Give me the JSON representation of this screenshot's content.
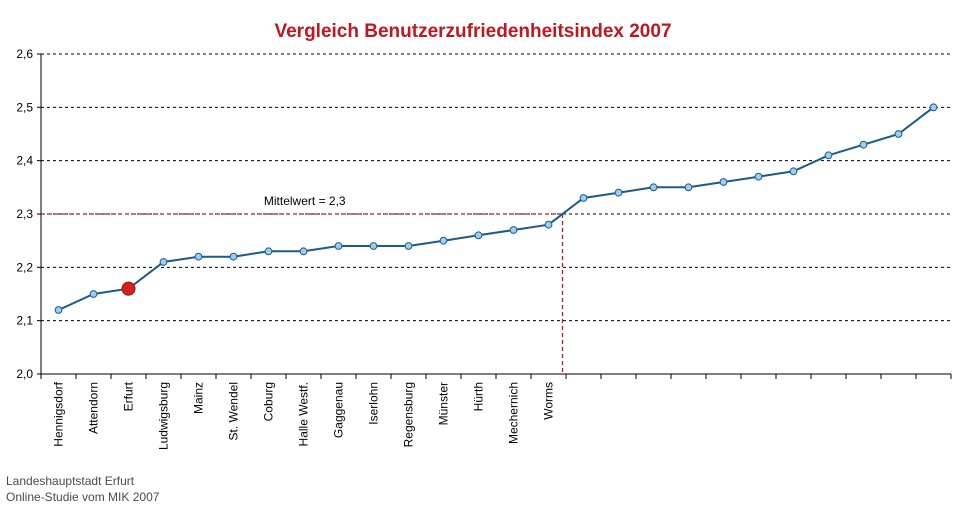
{
  "chart_data": {
    "type": "line",
    "title": "Vergleich Benutzerzufriedenheitsindex 2007",
    "title_color": "#c0171f",
    "line_color": "#1a5b8a",
    "marker_color": "#9dcdf0",
    "highlight_color": "#d32020",
    "reference_color": "#c0171f",
    "ylim": [
      2.0,
      2.6
    ],
    "y_ticks": [
      "2,0",
      "2,1",
      "2,2",
      "2,3",
      "2,4",
      "2,5",
      "2,6"
    ],
    "grid": true,
    "categories": [
      "Hennigsdorf",
      "Attendorn",
      "Erfurt",
      "Ludwigsburg",
      "Mainz",
      "St. Wendel",
      "Coburg",
      "Halle Westf.",
      "Gaggenau",
      "Iserlohn",
      "Regensburg",
      "Münster",
      "Hürth",
      "Mechernich",
      "Worms",
      "",
      "",
      "",
      "",
      "",
      "",
      "",
      "",
      "",
      "",
      ""
    ],
    "values": [
      2.12,
      2.15,
      2.16,
      2.21,
      2.22,
      2.22,
      2.23,
      2.23,
      2.24,
      2.24,
      2.24,
      2.25,
      2.26,
      2.27,
      2.28,
      2.33,
      2.34,
      2.35,
      2.35,
      2.36,
      2.37,
      2.38,
      2.41,
      2.43,
      2.45,
      2.5
    ],
    "highlight": "Erfurt",
    "reference": {
      "label": "Mittelwert = 2,3",
      "value": 2.3
    }
  },
  "footer": {
    "line1": "Landeshauptstadt Erfurt",
    "line2": "Online-Studie vom MIK 2007"
  }
}
